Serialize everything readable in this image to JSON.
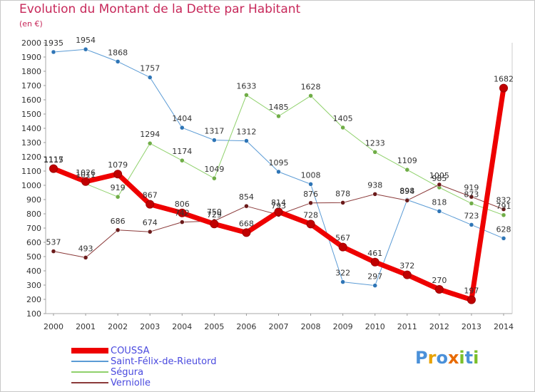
{
  "title": "Evolution du Montant de la Dette par Habitant",
  "unit": "(en €)",
  "logo": "Proxiti",
  "chart_data": {
    "type": "line",
    "title": "Evolution du Montant de la Dette par Habitant",
    "ylabel": "(en €)",
    "xlabel": "",
    "x": [
      "2000",
      "2001",
      "2002",
      "2003",
      "2004",
      "2005",
      "2006",
      "2007",
      "2008",
      "2009",
      "2010",
      "2011",
      "2012",
      "2013",
      "2014"
    ],
    "ylim": [
      100,
      2000
    ],
    "yticks": [
      100,
      200,
      300,
      400,
      500,
      600,
      700,
      800,
      900,
      1000,
      1100,
      1200,
      1300,
      1400,
      1500,
      1600,
      1700,
      1800,
      1900,
      2000
    ],
    "grid": false,
    "legend": "bottom-left",
    "series": [
      {
        "name": "COUSSA",
        "color": "#ee0000",
        "marker": "#c00000",
        "width": 7,
        "values": [
          1117,
          1026,
          1079,
          867,
          806,
          729,
          668,
          814,
          728,
          567,
          461,
          372,
          270,
          197,
          1682
        ],
        "labels": [
          "1117",
          "1026",
          "1079",
          "867",
          "806",
          "729",
          "668",
          "814",
          "728",
          "567",
          "461",
          "372",
          "270",
          "197",
          "1682"
        ]
      },
      {
        "name": "Saint-Félix-de-Rieutord",
        "color": "#5b9bd5",
        "marker": "#2e75b6",
        "width": 1,
        "values": [
          1935,
          1954,
          1868,
          1757,
          1404,
          1317,
          1312,
          1095,
          1008,
          322,
          297,
          898,
          818,
          723,
          628
        ],
        "labels": [
          "1935",
          "1954",
          "1868",
          "1757",
          "1404",
          "1317",
          "1312",
          "1095",
          "1008",
          "322",
          "297",
          "898",
          "818",
          "723",
          "628"
        ]
      },
      {
        "name": "Ségura",
        "color": "#8fd16b",
        "marker": "#70ad47",
        "width": 1,
        "values": [
          1115,
          1011,
          919,
          1294,
          1174,
          1049,
          1633,
          1485,
          1628,
          1405,
          1233,
          1109,
          985,
          873,
          791
        ],
        "labels": [
          "1115",
          "1011",
          "919",
          "1294",
          "1174",
          "1049",
          "1633",
          "1485",
          "1628",
          "1405",
          "1233",
          "1109",
          "985",
          "873",
          "791"
        ]
      },
      {
        "name": "Verniolle",
        "color": "#8b3a3a",
        "marker": "#6b1a1a",
        "width": 1,
        "values": [
          537,
          493,
          686,
          674,
          742,
          750,
          854,
          793,
          876,
          878,
          938,
          894,
          1005,
          919,
          832
        ],
        "labels": [
          "537",
          "493",
          "686",
          "674",
          "742",
          "750",
          "854",
          "793",
          "876",
          "878",
          "938",
          "894",
          "1005",
          "919",
          "832"
        ]
      }
    ]
  }
}
